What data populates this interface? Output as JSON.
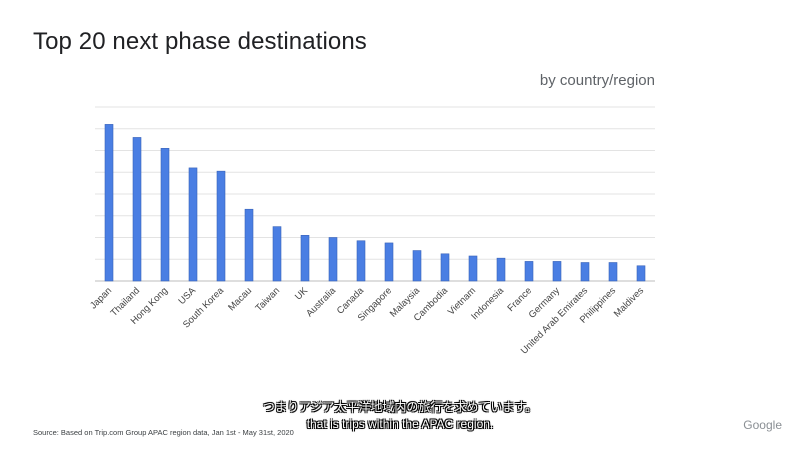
{
  "slide": {
    "title": "Top 20 next phase destinations",
    "subtitle": "by country/region",
    "source": "Source: Based on Trip.com Group APAC region data, Jan 1st - May 31st, 2020",
    "brand": "Google"
  },
  "captions": {
    "japanese": "つまりアジア太平洋地域内の旅行を求めています。",
    "english": "that is trips within the APAC region."
  },
  "colors": {
    "bar": "#4a7ee3",
    "bar_edge": "#3a63b8",
    "grid": "#e3e3e3",
    "axis": "#bdbdbd"
  },
  "chart_data": {
    "type": "bar",
    "title": "Top 20 next phase destinations",
    "subtitle": "by country/region",
    "categories": [
      "Japan",
      "Thailand",
      "Hong Kong",
      "USA",
      "South Korea",
      "Macau",
      "Taiwan",
      "UK",
      "Australia",
      "Canada",
      "Singapore",
      "Malaysia",
      "Cambodia",
      "Vietnam",
      "Indonesia",
      "France",
      "Germany",
      "United Arab Emirates",
      "Philippines",
      "Maldives"
    ],
    "values": [
      7.2,
      6.6,
      6.1,
      5.2,
      5.05,
      3.3,
      2.5,
      2.1,
      2.0,
      1.85,
      1.75,
      1.4,
      1.25,
      1.15,
      1.05,
      0.9,
      0.9,
      0.85,
      0.85,
      0.7
    ],
    "ylim": [
      0,
      8
    ],
    "y_tick_labels_shown": false,
    "grid": true,
    "legend": "none"
  }
}
